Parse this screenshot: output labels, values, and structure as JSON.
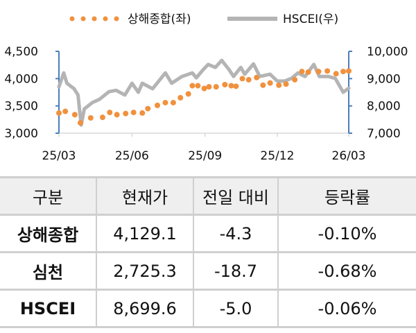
{
  "chart_data": {
    "type": "line",
    "legend_position": "top",
    "grid": false,
    "x_ticks": [
      "25/03",
      "25/06",
      "25/09",
      "25/12",
      "26/03"
    ],
    "x_tick_dates": [
      "2025-03-01",
      "2025-06-01",
      "2025-09-01",
      "2025-12-01",
      "2026-03-01"
    ],
    "y_left": {
      "range": [
        3000,
        4500
      ],
      "ticks": [
        "3,000",
        "3,500",
        "4,000",
        "4,500"
      ],
      "tick_values": [
        3000,
        3500,
        4000,
        4500
      ]
    },
    "y_right": {
      "range": [
        7000,
        10000
      ],
      "ticks": [
        "7,000",
        "8,000",
        "9,000",
        "10,000"
      ],
      "tick_values": [
        7000,
        8000,
        9000,
        10000
      ]
    },
    "series": [
      {
        "name": "상해종합(좌)",
        "axis": "left",
        "style": "dotted",
        "color": "#f0913e",
        "x": [
          "2025-03-01",
          "2025-03-09",
          "2025-03-21",
          "2025-03-28",
          "2025-04-10",
          "2025-04-25",
          "2025-05-04",
          "2025-05-13",
          "2025-05-24",
          "2025-06-03",
          "2025-06-14",
          "2025-06-21",
          "2025-07-03",
          "2025-07-13",
          "2025-07-23",
          "2025-08-01",
          "2025-08-11",
          "2025-08-16",
          "2025-08-23",
          "2025-08-31",
          "2025-09-06",
          "2025-09-15",
          "2025-09-26",
          "2025-10-04",
          "2025-10-10",
          "2025-10-18",
          "2025-10-26",
          "2025-11-05",
          "2025-11-13",
          "2025-11-22",
          "2025-12-03",
          "2025-12-12",
          "2025-12-23",
          "2026-01-01",
          "2026-01-09",
          "2026-01-22",
          "2026-02-02",
          "2026-02-13",
          "2026-02-22",
          "2026-03-01"
        ],
        "y": [
          3370,
          3400,
          3340,
          3190,
          3280,
          3290,
          3380,
          3340,
          3360,
          3380,
          3370,
          3450,
          3510,
          3560,
          3560,
          3650,
          3720,
          3870,
          3870,
          3820,
          3850,
          3850,
          3890,
          3870,
          3860,
          4000,
          3980,
          4020,
          3880,
          3920,
          3880,
          3900,
          3980,
          4130,
          4120,
          4130,
          4140,
          4090,
          4130,
          4140
        ]
      },
      {
        "name": "HSCEI(우)",
        "axis": "right",
        "style": "line",
        "color": "#b4b4b4",
        "x": [
          "2025-03-01",
          "2025-03-07",
          "2025-03-11",
          "2025-03-20",
          "2025-03-25",
          "2025-03-29",
          "2025-04-02",
          "2025-04-12",
          "2025-04-21",
          "2025-05-03",
          "2025-05-12",
          "2025-05-23",
          "2025-06-01",
          "2025-06-09",
          "2025-06-14",
          "2025-06-27",
          "2025-07-13",
          "2025-07-21",
          "2025-08-03",
          "2025-08-16",
          "2025-08-21",
          "2025-08-30",
          "2025-09-05",
          "2025-09-14",
          "2025-09-22",
          "2025-10-01",
          "2025-10-07",
          "2025-10-16",
          "2025-10-21",
          "2025-11-01",
          "2025-11-09",
          "2025-11-22",
          "2025-12-01",
          "2025-12-10",
          "2025-12-19",
          "2025-12-27",
          "2026-01-05",
          "2026-01-16",
          "2026-01-23",
          "2026-02-03",
          "2026-02-12",
          "2026-02-22",
          "2026-03-01"
        ],
        "y": [
          8700,
          9210,
          8830,
          8630,
          8400,
          7300,
          7890,
          8120,
          8240,
          8520,
          8570,
          8400,
          8830,
          8500,
          8830,
          8630,
          9210,
          8830,
          9080,
          9210,
          9030,
          9340,
          9520,
          9410,
          9670,
          9340,
          9080,
          9410,
          9160,
          9540,
          9080,
          9160,
          8910,
          8910,
          9010,
          9210,
          9080,
          9520,
          9080,
          9080,
          9010,
          8500,
          8650
        ]
      }
    ]
  },
  "table": {
    "headers": [
      "구분",
      "현재가",
      "전일 대비",
      "등락률"
    ],
    "rows": [
      [
        "상해종합",
        "4,129.1",
        "-4.3",
        "-0.10%"
      ],
      [
        "심천",
        "2,725.3",
        "-18.7",
        "-0.68%"
      ],
      [
        "HSCEI",
        "8,699.6",
        "-5.0",
        "-0.06%"
      ]
    ]
  }
}
